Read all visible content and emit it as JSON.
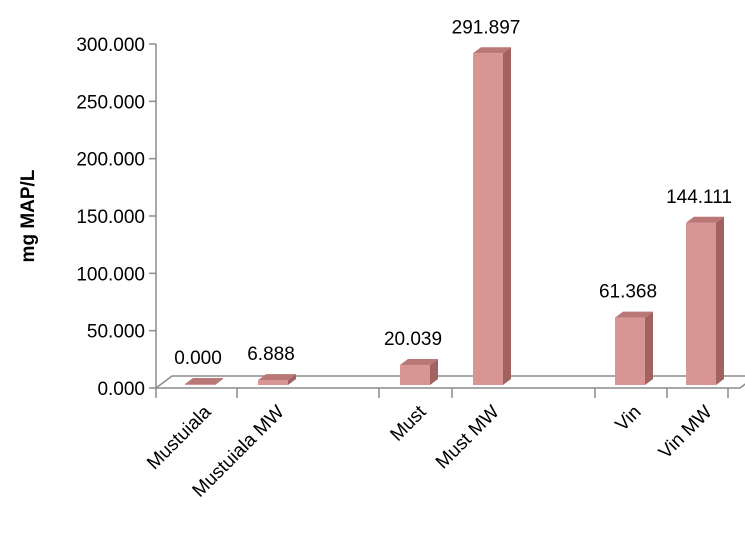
{
  "chart_data": {
    "type": "bar",
    "style": "3d-column",
    "categories": [
      "Mustuiala",
      "Mustuiala MW",
      "Must",
      "Must MW",
      "Vin",
      "Vin MW"
    ],
    "groups": [
      [
        0,
        1
      ],
      [
        2,
        3
      ],
      [
        4,
        5
      ]
    ],
    "values": [
      0.0,
      6.888,
      20.039,
      291.897,
      61.368,
      144.111
    ],
    "value_labels": [
      "0.000",
      "6.888",
      "20.039",
      "291.897",
      "61.368",
      "144.111"
    ],
    "xlabel": "",
    "ylabel": "mg MAP/L",
    "ylim": [
      0,
      300
    ],
    "yticks": [
      0,
      50,
      100,
      150,
      200,
      250,
      300
    ],
    "ytick_labels": [
      "0.000",
      "50.000",
      "100.000",
      "150.000",
      "200.000",
      "250.000",
      "300.000"
    ],
    "grid": false,
    "legend": "none",
    "colors": {
      "bar_front": "#d99594",
      "bar_side": "#a36262",
      "bar_top": "#b97776",
      "axis": "#8c8c8c"
    }
  }
}
